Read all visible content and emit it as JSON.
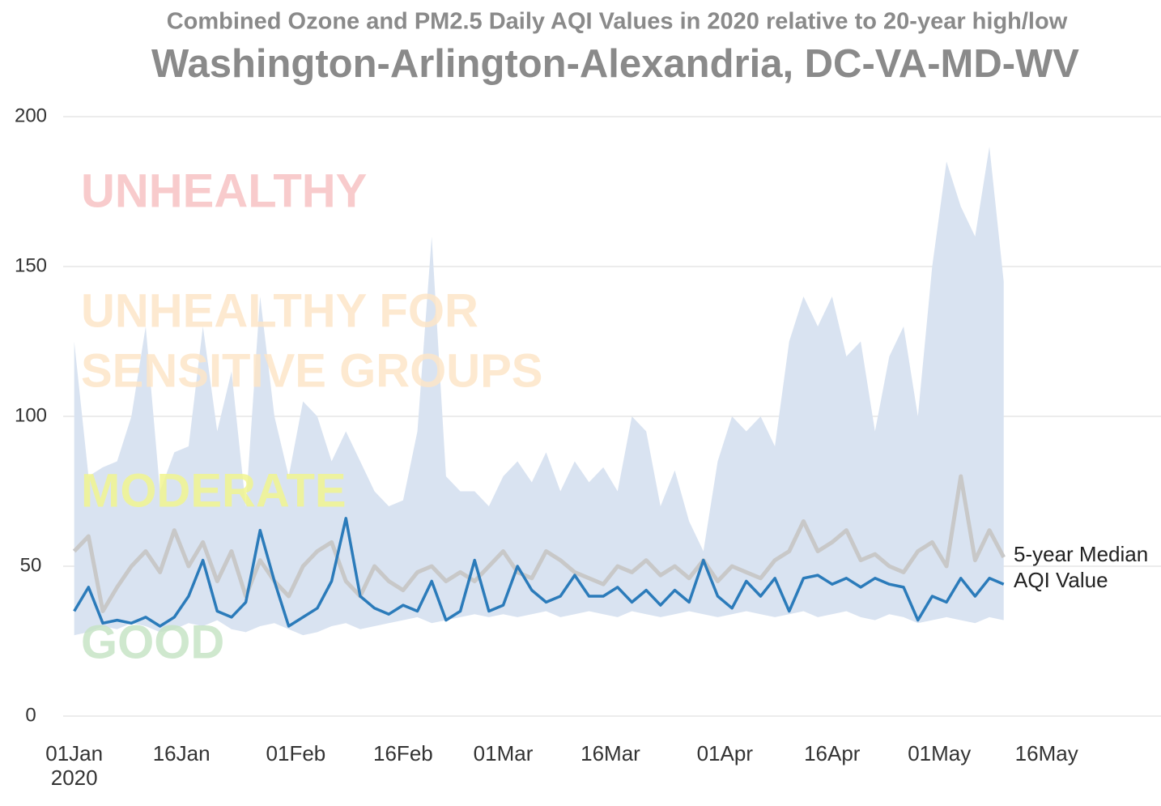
{
  "chart_data": {
    "type": "line",
    "title": "Combined Ozone and PM2.5 Daily AQI Values in 2020 relative to 20-year high/low",
    "subtitle": "Washington-Arlington-Alexandria, DC-VA-MD-WV",
    "x": [
      "2020-01-01",
      "2020-01-03",
      "2020-01-05",
      "2020-01-07",
      "2020-01-09",
      "2020-01-11",
      "2020-01-13",
      "2020-01-15",
      "2020-01-17",
      "2020-01-19",
      "2020-01-21",
      "2020-01-23",
      "2020-01-25",
      "2020-01-27",
      "2020-01-29",
      "2020-01-31",
      "2020-02-02",
      "2020-02-04",
      "2020-02-06",
      "2020-02-08",
      "2020-02-10",
      "2020-02-12",
      "2020-02-14",
      "2020-02-16",
      "2020-02-18",
      "2020-02-20",
      "2020-02-22",
      "2020-02-24",
      "2020-02-26",
      "2020-02-28",
      "2020-03-01",
      "2020-03-03",
      "2020-03-05",
      "2020-03-07",
      "2020-03-09",
      "2020-03-11",
      "2020-03-13",
      "2020-03-15",
      "2020-03-17",
      "2020-03-19",
      "2020-03-21",
      "2020-03-23",
      "2020-03-25",
      "2020-03-27",
      "2020-03-29",
      "2020-03-31",
      "2020-04-02",
      "2020-04-04",
      "2020-04-06",
      "2020-04-08",
      "2020-04-10",
      "2020-04-12",
      "2020-04-14",
      "2020-04-16",
      "2020-04-18",
      "2020-04-20",
      "2020-04-22",
      "2020-04-24",
      "2020-04-26",
      "2020-04-28",
      "2020-04-30",
      "2020-05-02",
      "2020-05-04",
      "2020-05-06",
      "2020-05-08",
      "2020-05-10"
    ],
    "band": {
      "color": "#d9e3f1",
      "high": [
        125,
        80,
        83,
        85,
        100,
        130,
        75,
        88,
        90,
        130,
        95,
        115,
        70,
        140,
        100,
        80,
        105,
        100,
        85,
        95,
        85,
        75,
        70,
        72,
        95,
        160,
        80,
        75,
        75,
        70,
        80,
        85,
        78,
        88,
        75,
        85,
        78,
        83,
        75,
        100,
        95,
        70,
        82,
        65,
        55,
        85,
        100,
        95,
        100,
        90,
        125,
        140,
        130,
        140,
        120,
        125,
        95,
        120,
        130,
        100,
        150,
        185,
        170,
        160,
        190,
        145
      ],
      "low": [
        27,
        28,
        30,
        29,
        31,
        30,
        28,
        29,
        31,
        30,
        32,
        29,
        28,
        30,
        31,
        29,
        27,
        28,
        30,
        31,
        29,
        30,
        31,
        32,
        33,
        31,
        32,
        33,
        34,
        33,
        34,
        33,
        34,
        35,
        33,
        34,
        35,
        34,
        33,
        35,
        34,
        33,
        34,
        35,
        34,
        33,
        34,
        35,
        34,
        33,
        34,
        35,
        33,
        34,
        35,
        33,
        32,
        34,
        33,
        31,
        32,
        33,
        32,
        31,
        33,
        32
      ]
    },
    "series": [
      {
        "name": "5-year Median AQI Value",
        "color": "#c8c8c8",
        "values": [
          55,
          60,
          35,
          43,
          50,
          55,
          48,
          62,
          50,
          58,
          45,
          55,
          40,
          52,
          45,
          40,
          50,
          55,
          58,
          45,
          40,
          50,
          45,
          42,
          48,
          50,
          45,
          48,
          45,
          50,
          55,
          48,
          46,
          55,
          52,
          48,
          46,
          44,
          50,
          48,
          52,
          47,
          50,
          46,
          52,
          45,
          50,
          48,
          46,
          52,
          55,
          65,
          55,
          58,
          62,
          52,
          54,
          50,
          48,
          55,
          58,
          50,
          80,
          52,
          62,
          53
        ]
      },
      {
        "color": "#2b7bba",
        "values": [
          35,
          43,
          31,
          32,
          31,
          33,
          30,
          33,
          40,
          52,
          35,
          33,
          38,
          62,
          45,
          30,
          33,
          36,
          45,
          66,
          40,
          36,
          34,
          37,
          35,
          45,
          32,
          35,
          52,
          35,
          37,
          50,
          42,
          38,
          40,
          47,
          40,
          40,
          43,
          38,
          42,
          37,
          42,
          38,
          52,
          40,
          36,
          45,
          40,
          46,
          35,
          46,
          47,
          44,
          46,
          43,
          46,
          44,
          43,
          32,
          40,
          38,
          46,
          40,
          46,
          44
        ]
      }
    ],
    "zones": [
      {
        "lines": [
          "UNHEALTHY"
        ],
        "color": "#f7c3c4"
      },
      {
        "lines": [
          "UNHEALTHY FOR",
          "SENSITIVE GROUPS"
        ],
        "color": "#fde6c8"
      },
      {
        "lines": [
          "MODERATE"
        ],
        "color": "#f1f590"
      },
      {
        "lines": [
          "GOOD"
        ],
        "color": "#c7e4c6"
      }
    ],
    "xlim": [
      "2019-12-30",
      "2020-06-01"
    ],
    "xticks": [
      {
        "value": "2020-01-01",
        "label": "01Jan"
      },
      {
        "value": "2020-01-16",
        "label": "16Jan"
      },
      {
        "value": "2020-02-01",
        "label": "01Feb"
      },
      {
        "value": "2020-02-16",
        "label": "16Feb"
      },
      {
        "value": "2020-03-01",
        "label": "01Mar"
      },
      {
        "value": "2020-03-16",
        "label": "16Mar"
      },
      {
        "value": "2020-04-01",
        "label": "01Apr"
      },
      {
        "value": "2020-04-16",
        "label": "16Apr"
      },
      {
        "value": "2020-05-01",
        "label": "01May"
      },
      {
        "value": "2020-05-16",
        "label": "16May"
      }
    ],
    "x_year_label": "2020",
    "ylim": [
      0,
      200
    ],
    "yticks": [
      0,
      50,
      100,
      150,
      200
    ],
    "grid": true
  }
}
